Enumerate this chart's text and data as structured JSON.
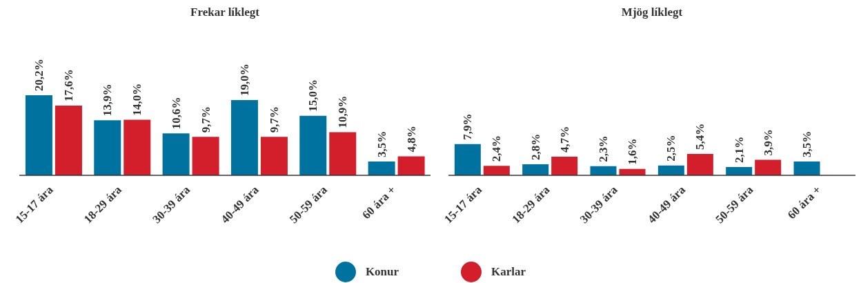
{
  "chart_data": [
    {
      "type": "bar",
      "title": "Frekar líklegt",
      "categories": [
        "15-17 ára",
        "18-29 ára",
        "30-39 ára",
        "40-49 ára",
        "50-59 ára",
        "60 ára +"
      ],
      "series": [
        {
          "name": "Konur",
          "color": "#0072a0",
          "values": [
            20.2,
            13.9,
            10.6,
            19.0,
            15.0,
            3.5
          ],
          "value_labels": [
            "20,2%",
            "13,9%",
            "10,6%",
            "19,0%",
            "15,0%",
            "3,5%"
          ]
        },
        {
          "name": "Karlar",
          "color": "#d21f2b",
          "values": [
            17.6,
            14.0,
            9.7,
            9.7,
            10.9,
            4.8
          ],
          "value_labels": [
            "17,6%",
            "14,0%",
            "9,7%",
            "9,7%",
            "10,9%",
            "4,8%"
          ]
        }
      ],
      "legend": "bottom"
    },
    {
      "type": "bar",
      "title": "Mjög líklegt",
      "categories": [
        "15-17 ára",
        "18-29 ára",
        "30-39 ára",
        "40-49 ára",
        "50-59 ára",
        "60 ára +"
      ],
      "series": [
        {
          "color": "#0072a0",
          "values": [
            7.9,
            2.8,
            2.3,
            2.5,
            2.1,
            3.5
          ],
          "value_labels": [
            "7,9%",
            "2,8%",
            "2,3%",
            "2,5%",
            "2,1%",
            "3,5%"
          ]
        },
        {
          "color": "#d21f2b",
          "values": [
            2.4,
            4.7,
            1.6,
            5.4,
            3.9,
            null
          ],
          "value_labels": [
            "2,4%",
            "4,7%",
            "1,6%",
            "5,4%",
            "3,9%",
            null
          ]
        }
      ]
    }
  ]
}
